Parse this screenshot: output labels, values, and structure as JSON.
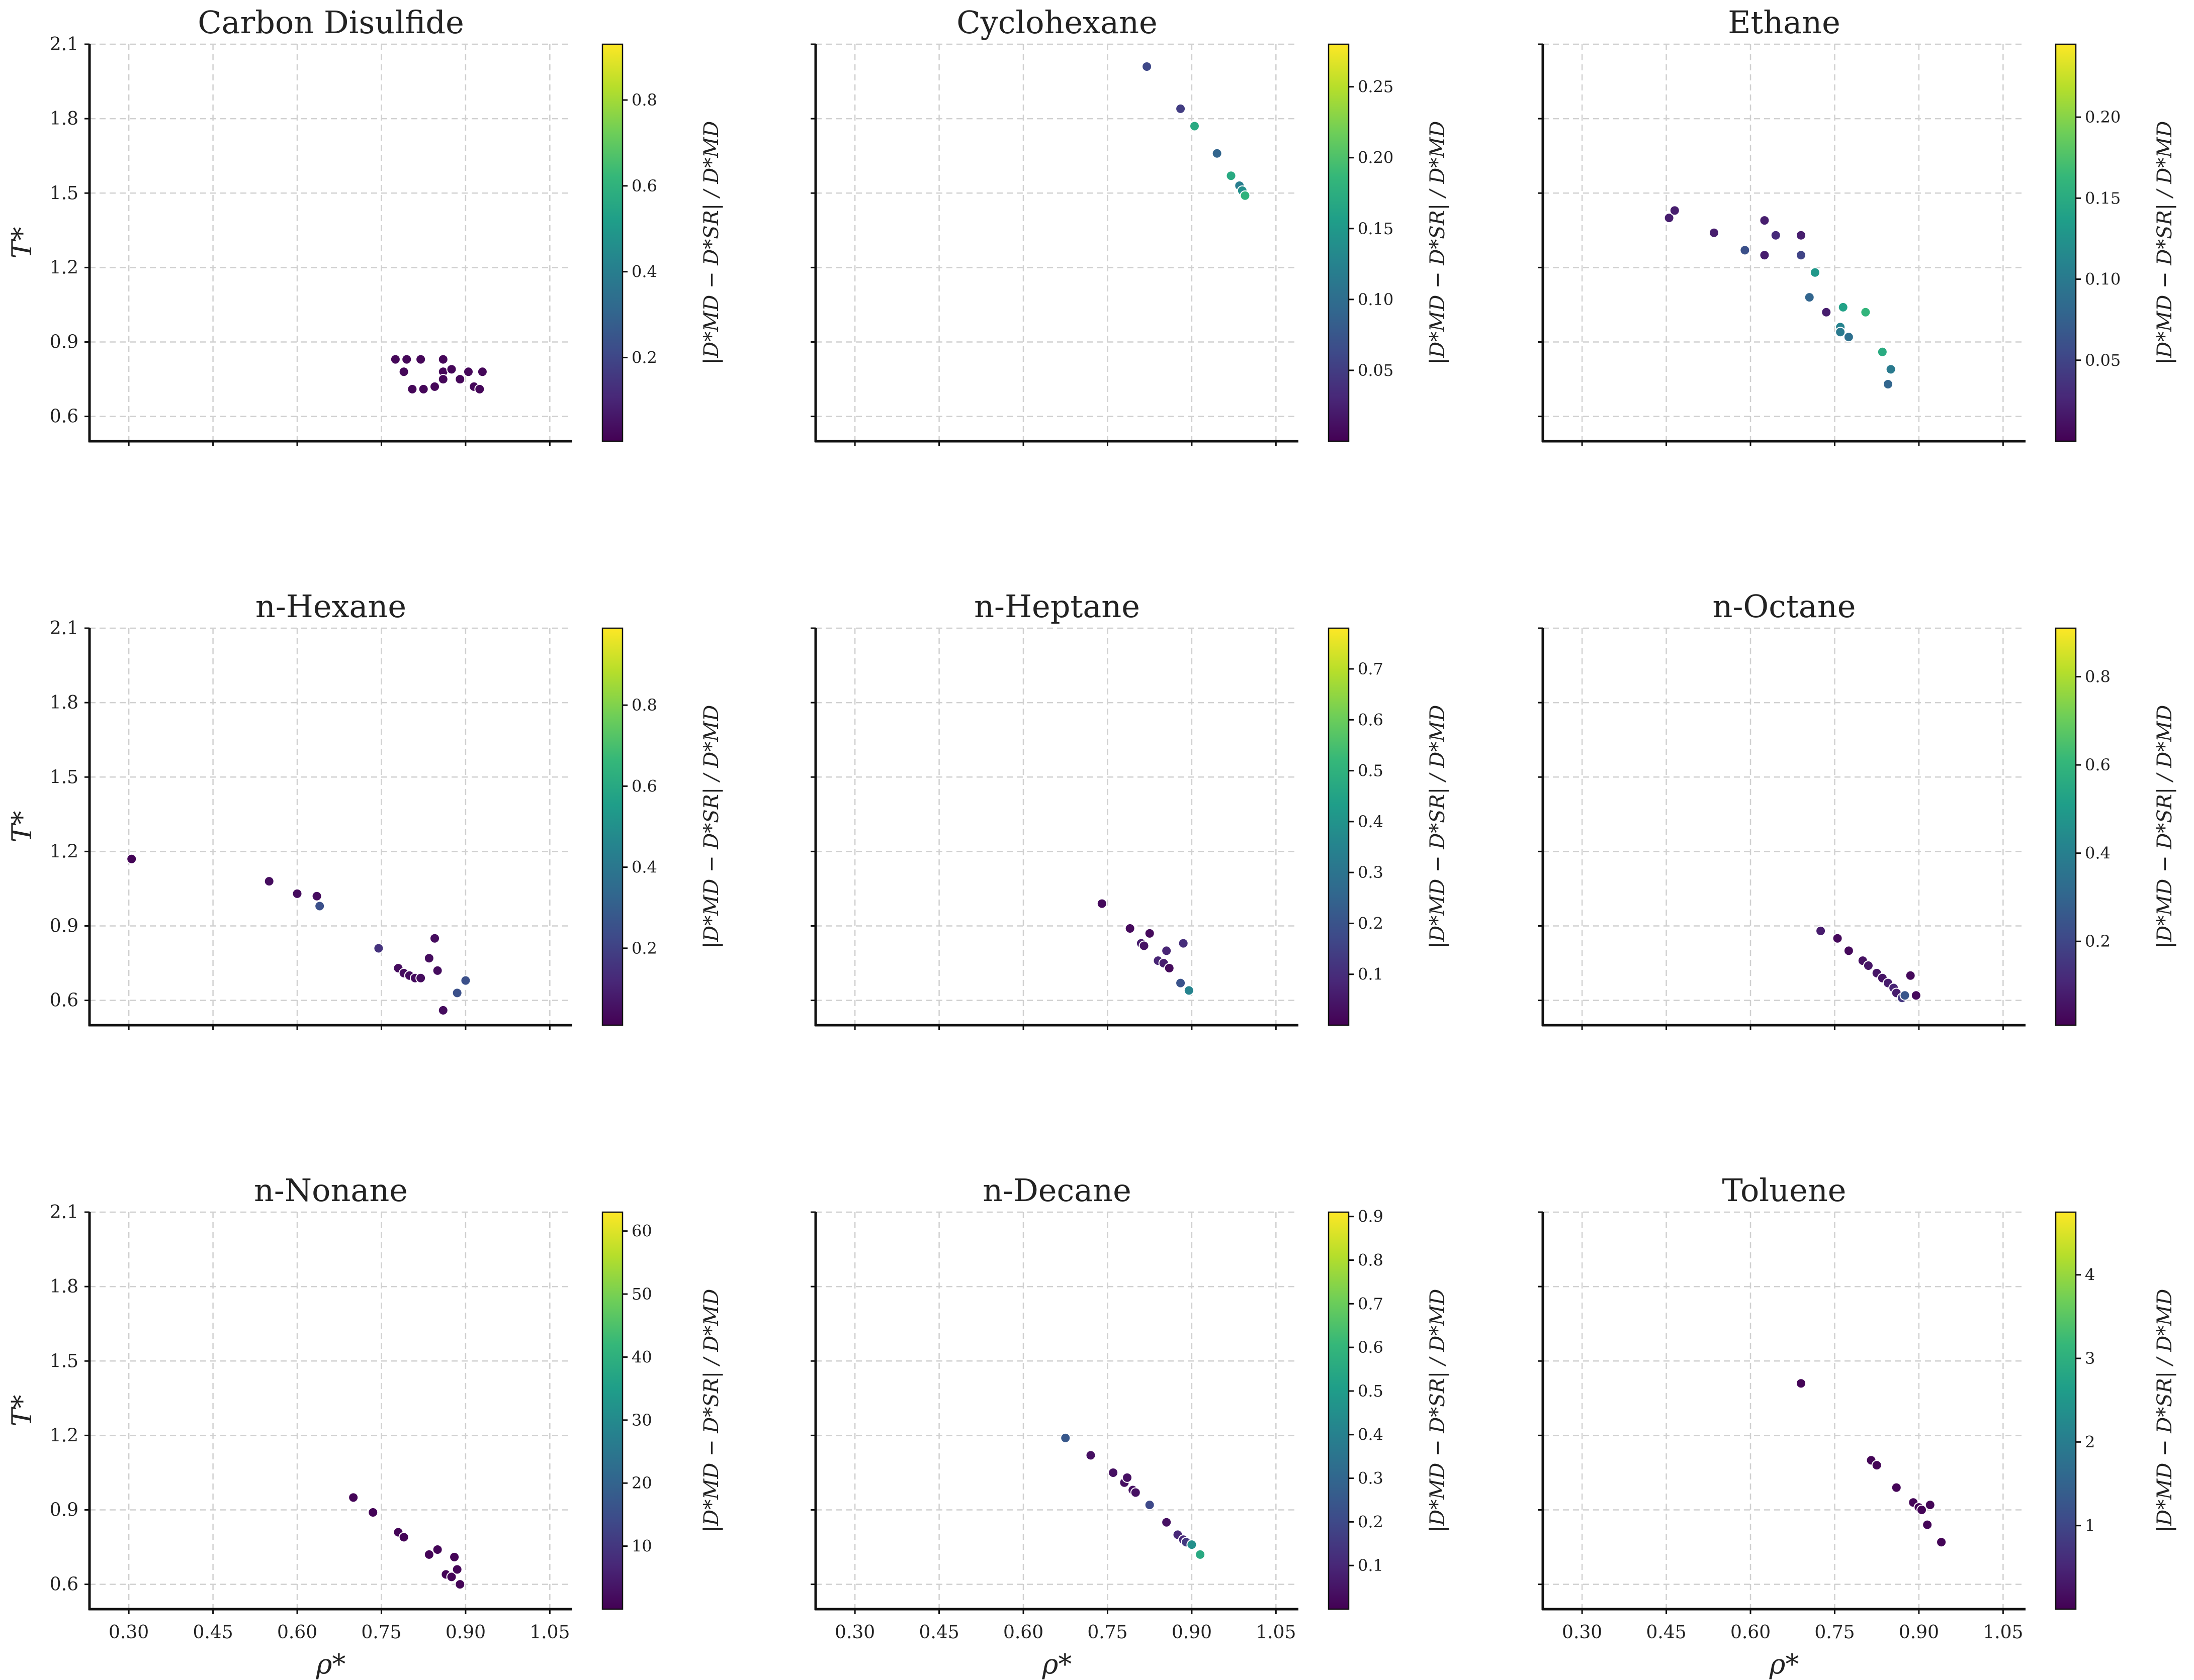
{
  "figure": {
    "x_label": "ρ*",
    "y_label": "T*",
    "colorbar_label": "|D*MD − D*SR| / D*MD",
    "colormap": "viridis"
  },
  "chart_data": [
    {
      "type": "scatter",
      "title": "Carbon Disulfide",
      "xlim": [
        0.23,
        1.09
      ],
      "ylim": [
        0.5,
        2.1
      ],
      "xticks": [
        "0.30",
        "0.45",
        "0.60",
        "0.75",
        "0.90",
        "1.05"
      ],
      "yticks": [
        "0.6",
        "0.9",
        "1.2",
        "1.5",
        "1.8",
        "2.1"
      ],
      "cbar": {
        "min": 0.005,
        "max": 0.93,
        "ticks": [
          0.2,
          0.4,
          0.6,
          0.8
        ],
        "tick_labels": [
          "0.2",
          "0.4",
          "0.6",
          "0.8"
        ]
      },
      "points": [
        [
          0.775,
          0.83,
          0.02
        ],
        [
          0.795,
          0.83,
          0.02
        ],
        [
          0.82,
          0.83,
          0.02
        ],
        [
          0.86,
          0.83,
          0.02
        ],
        [
          0.79,
          0.78,
          0.02
        ],
        [
          0.86,
          0.78,
          0.02
        ],
        [
          0.875,
          0.79,
          0.02
        ],
        [
          0.905,
          0.78,
          0.02
        ],
        [
          0.93,
          0.78,
          0.02
        ],
        [
          0.86,
          0.75,
          0.02
        ],
        [
          0.89,
          0.75,
          0.02
        ],
        [
          0.805,
          0.71,
          0.02
        ],
        [
          0.825,
          0.71,
          0.02
        ],
        [
          0.845,
          0.72,
          0.02
        ],
        [
          0.915,
          0.72,
          0.02
        ],
        [
          0.925,
          0.71,
          0.02
        ]
      ]
    },
    {
      "type": "scatter",
      "title": "Cyclohexane",
      "xlim": [
        0.23,
        1.09
      ],
      "ylim": [
        0.5,
        2.1
      ],
      "xticks": [
        "0.30",
        "0.45",
        "0.60",
        "0.75",
        "0.90",
        "1.05"
      ],
      "yticks": [
        "0.6",
        "0.9",
        "1.2",
        "1.5",
        "1.8",
        "2.1"
      ],
      "cbar": {
        "min": 0.0,
        "max": 0.28,
        "ticks": [
          0.05,
          0.1,
          0.15,
          0.2,
          0.25
        ],
        "tick_labels": [
          "0.05",
          "0.10",
          "0.15",
          "0.20",
          "0.25"
        ]
      },
      "points": [
        [
          0.82,
          2.01,
          0.06
        ],
        [
          0.88,
          1.84,
          0.05
        ],
        [
          0.905,
          1.77,
          0.17
        ],
        [
          0.945,
          1.66,
          0.09
        ],
        [
          0.97,
          1.57,
          0.17
        ],
        [
          0.985,
          1.53,
          0.12
        ],
        [
          0.99,
          1.51,
          0.14
        ],
        [
          0.995,
          1.49,
          0.18
        ]
      ]
    },
    {
      "type": "scatter",
      "title": "Ethane",
      "xlim": [
        0.23,
        1.09
      ],
      "ylim": [
        0.5,
        2.1
      ],
      "xticks": [
        "0.30",
        "0.45",
        "0.60",
        "0.75",
        "0.90",
        "1.05"
      ],
      "yticks": [
        "0.6",
        "0.9",
        "1.2",
        "1.5",
        "1.8",
        "2.1"
      ],
      "cbar": {
        "min": 0.0,
        "max": 0.245,
        "ticks": [
          0.05,
          0.1,
          0.15,
          0.2
        ],
        "tick_labels": [
          "0.05",
          "0.10",
          "0.15",
          "0.20"
        ]
      },
      "points": [
        [
          0.455,
          1.4,
          0.02
        ],
        [
          0.465,
          1.43,
          0.02
        ],
        [
          0.535,
          1.34,
          0.02
        ],
        [
          0.59,
          1.27,
          0.06
        ],
        [
          0.625,
          1.25,
          0.02
        ],
        [
          0.625,
          1.39,
          0.02
        ],
        [
          0.645,
          1.33,
          0.03
        ],
        [
          0.69,
          1.33,
          0.02
        ],
        [
          0.69,
          1.25,
          0.05
        ],
        [
          0.705,
          1.08,
          0.08
        ],
        [
          0.715,
          1.18,
          0.13
        ],
        [
          0.735,
          1.02,
          0.02
        ],
        [
          0.76,
          0.96,
          0.11
        ],
        [
          0.765,
          1.04,
          0.14
        ],
        [
          0.775,
          0.92,
          0.09
        ],
        [
          0.76,
          0.94,
          0.1
        ],
        [
          0.805,
          1.02,
          0.16
        ],
        [
          0.835,
          0.86,
          0.15
        ],
        [
          0.85,
          0.79,
          0.1
        ],
        [
          0.845,
          0.73,
          0.08
        ]
      ]
    },
    {
      "type": "scatter",
      "title": "n-Hexane",
      "xlim": [
        0.23,
        1.09
      ],
      "ylim": [
        0.5,
        2.1
      ],
      "xticks": [
        "0.30",
        "0.45",
        "0.60",
        "0.75",
        "0.90",
        "1.05"
      ],
      "yticks": [
        "0.6",
        "0.9",
        "1.2",
        "1.5",
        "1.8",
        "2.1"
      ],
      "cbar": {
        "min": 0.01,
        "max": 0.99,
        "ticks": [
          0.2,
          0.4,
          0.6,
          0.8
        ],
        "tick_labels": [
          "0.2",
          "0.4",
          "0.6",
          "0.8"
        ]
      },
      "points": [
        [
          0.305,
          1.17,
          0.02
        ],
        [
          0.55,
          1.08,
          0.04
        ],
        [
          0.6,
          1.03,
          0.04
        ],
        [
          0.635,
          1.02,
          0.04
        ],
        [
          0.64,
          0.98,
          0.25
        ],
        [
          0.745,
          0.81,
          0.15
        ],
        [
          0.78,
          0.73,
          0.04
        ],
        [
          0.79,
          0.71,
          0.04
        ],
        [
          0.8,
          0.7,
          0.04
        ],
        [
          0.81,
          0.69,
          0.04
        ],
        [
          0.82,
          0.69,
          0.04
        ],
        [
          0.835,
          0.77,
          0.04
        ],
        [
          0.845,
          0.85,
          0.04
        ],
        [
          0.85,
          0.72,
          0.04
        ],
        [
          0.885,
          0.63,
          0.25
        ],
        [
          0.9,
          0.68,
          0.25
        ],
        [
          0.86,
          0.56,
          0.04
        ]
      ]
    },
    {
      "type": "scatter",
      "title": "n-Heptane",
      "xlim": [
        0.23,
        1.09
      ],
      "ylim": [
        0.5,
        2.1
      ],
      "xticks": [
        "0.30",
        "0.45",
        "0.60",
        "0.75",
        "0.90",
        "1.05"
      ],
      "yticks": [
        "0.6",
        "0.9",
        "1.2",
        "1.5",
        "1.8",
        "2.1"
      ],
      "cbar": {
        "min": 0.0,
        "max": 0.78,
        "ticks": [
          0.1,
          0.2,
          0.3,
          0.4,
          0.5,
          0.6,
          0.7
        ],
        "tick_labels": [
          "0.1",
          "0.2",
          "0.3",
          "0.4",
          "0.5",
          "0.6",
          "0.7"
        ]
      },
      "points": [
        [
          0.74,
          0.99,
          0.02
        ],
        [
          0.79,
          0.89,
          0.02
        ],
        [
          0.81,
          0.83,
          0.06
        ],
        [
          0.815,
          0.82,
          0.04
        ],
        [
          0.825,
          0.87,
          0.02
        ],
        [
          0.84,
          0.76,
          0.08
        ],
        [
          0.85,
          0.75,
          0.06
        ],
        [
          0.86,
          0.73,
          0.02
        ],
        [
          0.855,
          0.8,
          0.08
        ],
        [
          0.88,
          0.67,
          0.2
        ],
        [
          0.885,
          0.83,
          0.1
        ],
        [
          0.895,
          0.64,
          0.35
        ]
      ]
    },
    {
      "type": "scatter",
      "title": "n-Octane",
      "xlim": [
        0.23,
        1.09
      ],
      "ylim": [
        0.5,
        2.1
      ],
      "xticks": [
        "0.30",
        "0.45",
        "0.60",
        "0.75",
        "0.90",
        "1.05"
      ],
      "yticks": [
        "0.6",
        "0.9",
        "1.2",
        "1.5",
        "1.8",
        "2.1"
      ],
      "cbar": {
        "min": 0.01,
        "max": 0.91,
        "ticks": [
          0.2,
          0.4,
          0.6,
          0.8
        ],
        "tick_labels": [
          "0.2",
          "0.4",
          "0.6",
          "0.8"
        ]
      },
      "points": [
        [
          0.725,
          0.88,
          0.08
        ],
        [
          0.755,
          0.85,
          0.03
        ],
        [
          0.775,
          0.8,
          0.03
        ],
        [
          0.8,
          0.76,
          0.05
        ],
        [
          0.81,
          0.74,
          0.06
        ],
        [
          0.825,
          0.71,
          0.06
        ],
        [
          0.835,
          0.69,
          0.06
        ],
        [
          0.845,
          0.67,
          0.08
        ],
        [
          0.855,
          0.65,
          0.1
        ],
        [
          0.86,
          0.63,
          0.08
        ],
        [
          0.87,
          0.61,
          0.15
        ],
        [
          0.875,
          0.62,
          0.25
        ],
        [
          0.885,
          0.7,
          0.03
        ],
        [
          0.895,
          0.62,
          0.03
        ]
      ]
    },
    {
      "type": "scatter",
      "title": "n-Nonane",
      "xlim": [
        0.23,
        1.09
      ],
      "ylim": [
        0.5,
        2.1
      ],
      "xticks": [
        "0.30",
        "0.45",
        "0.60",
        "0.75",
        "0.90",
        "1.05"
      ],
      "yticks": [
        "0.6",
        "0.9",
        "1.2",
        "1.5",
        "1.8",
        "2.1"
      ],
      "cbar": {
        "min": 0.0,
        "max": 63,
        "ticks": [
          10,
          20,
          30,
          40,
          50,
          60
        ],
        "tick_labels": [
          "10",
          "20",
          "30",
          "40",
          "50",
          "60"
        ]
      },
      "points": [
        [
          0.7,
          0.95,
          0.5
        ],
        [
          0.735,
          0.89,
          0.5
        ],
        [
          0.78,
          0.81,
          0.5
        ],
        [
          0.79,
          0.79,
          0.5
        ],
        [
          0.835,
          0.72,
          0.5
        ],
        [
          0.85,
          0.74,
          0.5
        ],
        [
          0.865,
          0.64,
          0.5
        ],
        [
          0.875,
          0.63,
          0.5
        ],
        [
          0.88,
          0.71,
          0.5
        ],
        [
          0.885,
          0.66,
          0.5
        ],
        [
          0.89,
          0.6,
          0.5
        ]
      ]
    },
    {
      "type": "scatter",
      "title": "n-Decane",
      "xlim": [
        0.23,
        1.09
      ],
      "ylim": [
        0.5,
        2.1
      ],
      "xticks": [
        "0.30",
        "0.45",
        "0.60",
        "0.75",
        "0.90",
        "1.05"
      ],
      "yticks": [
        "0.6",
        "0.9",
        "1.2",
        "1.5",
        "1.8",
        "2.1"
      ],
      "cbar": {
        "min": 0.0,
        "max": 0.91,
        "ticks": [
          0.1,
          0.2,
          0.3,
          0.4,
          0.5,
          0.6,
          0.7,
          0.8,
          0.9
        ],
        "tick_labels": [
          "0.1",
          "0.2",
          "0.3",
          "0.4",
          "0.5",
          "0.6",
          "0.7",
          "0.8",
          "0.9"
        ]
      },
      "points": [
        [
          0.675,
          1.19,
          0.25
        ],
        [
          0.72,
          1.12,
          0.04
        ],
        [
          0.76,
          1.05,
          0.04
        ],
        [
          0.78,
          1.01,
          0.04
        ],
        [
          0.785,
          1.03,
          0.04
        ],
        [
          0.795,
          0.98,
          0.04
        ],
        [
          0.8,
          0.97,
          0.04
        ],
        [
          0.825,
          0.92,
          0.2
        ],
        [
          0.855,
          0.85,
          0.04
        ],
        [
          0.875,
          0.8,
          0.1
        ],
        [
          0.885,
          0.78,
          0.1
        ],
        [
          0.89,
          0.77,
          0.15
        ],
        [
          0.9,
          0.76,
          0.45
        ],
        [
          0.915,
          0.72,
          0.55
        ]
      ]
    },
    {
      "type": "scatter",
      "title": "Toluene",
      "xlim": [
        0.23,
        1.09
      ],
      "ylim": [
        0.5,
        2.1
      ],
      "xticks": [
        "0.30",
        "0.45",
        "0.60",
        "0.75",
        "0.90",
        "1.05"
      ],
      "yticks": [
        "0.6",
        "0.9",
        "1.2",
        "1.5",
        "1.8",
        "2.1"
      ],
      "cbar": {
        "min": 0.0,
        "max": 4.75,
        "ticks": [
          1,
          2,
          3,
          4
        ],
        "tick_labels": [
          "1",
          "2",
          "3",
          "4"
        ]
      },
      "points": [
        [
          0.69,
          1.41,
          0.05
        ],
        [
          0.815,
          1.1,
          0.05
        ],
        [
          0.825,
          1.08,
          0.05
        ],
        [
          0.86,
          0.99,
          0.05
        ],
        [
          0.89,
          0.93,
          0.05
        ],
        [
          0.9,
          0.91,
          0.05
        ],
        [
          0.905,
          0.9,
          0.05
        ],
        [
          0.915,
          0.84,
          0.05
        ],
        [
          0.92,
          0.92,
          0.05
        ],
        [
          0.94,
          0.77,
          0.05
        ]
      ]
    }
  ]
}
